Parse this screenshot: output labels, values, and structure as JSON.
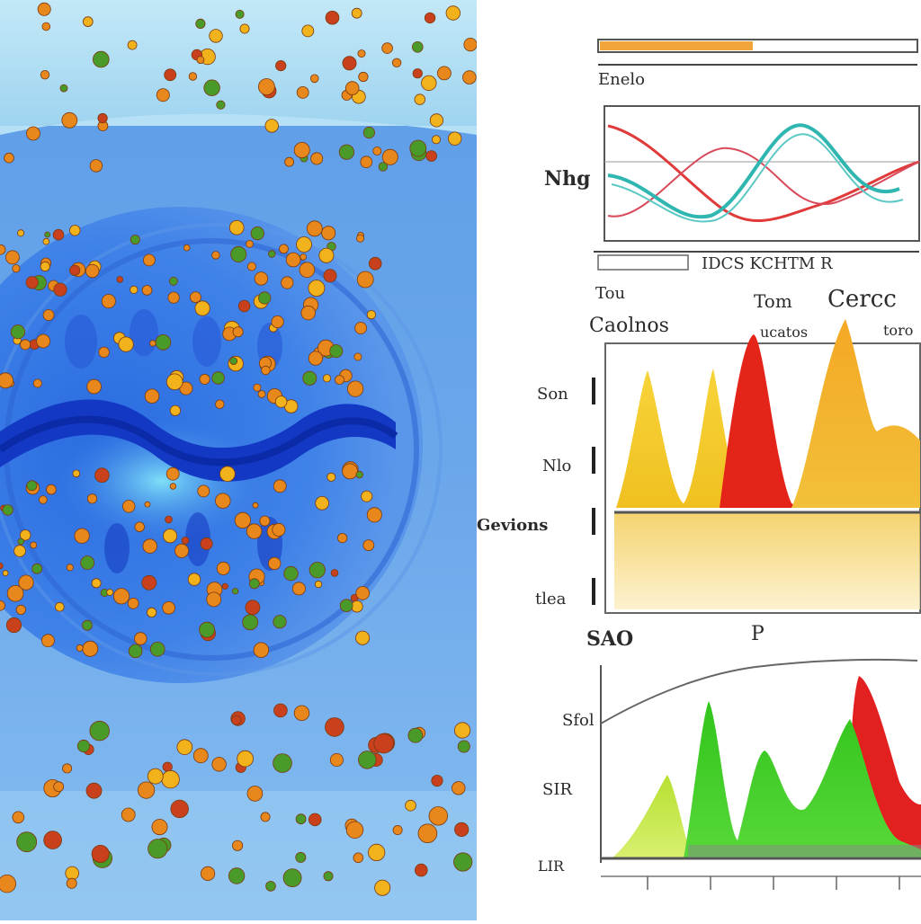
{
  "artwork": {
    "left_panel": {
      "subject": "microscopic blob with orange particles",
      "colors": {
        "sky_top": "#a9dcf2",
        "water": "#6aa6ea",
        "blob_outer": "#3f7fe6",
        "blob_core": "#1e4fd0",
        "wave": "#1238c4",
        "particle_orange": "#e8871c",
        "particle_red": "#c8401c",
        "particle_gold": "#f2b21c",
        "particle_green": "#4a9a2a"
      }
    },
    "right_panel": {
      "top_chart": {
        "header": "Enelo",
        "y_label": "Nhg",
        "axis_bottom_label": "IDCS KCHTM R",
        "colors": {
          "teal": "#2fb6b0",
          "red": "#e03a3a"
        }
      },
      "middle_chart": {
        "labels": {
          "t_left": "Tou",
          "t_mid": "Tom",
          "t_right": "Cercc",
          "heading": "Caolnos",
          "sub_mid": "ucatos",
          "sub_right": "toro",
          "y1": "Son",
          "y2": "Nlo",
          "y3": "Gevions",
          "y4": "tlea"
        },
        "colors": {
          "yellow": "#f2c81a",
          "red": "#e42418",
          "orange": "#f09a1e"
        }
      },
      "bottom_chart": {
        "labels": {
          "head1": "SAO",
          "head2": "P",
          "y1": "Sfol",
          "y2": "SIR",
          "y3": "LIR"
        },
        "colors": {
          "green": "#3ccb22",
          "lime": "#a8d82a",
          "red": "#e32020"
        }
      }
    }
  }
}
